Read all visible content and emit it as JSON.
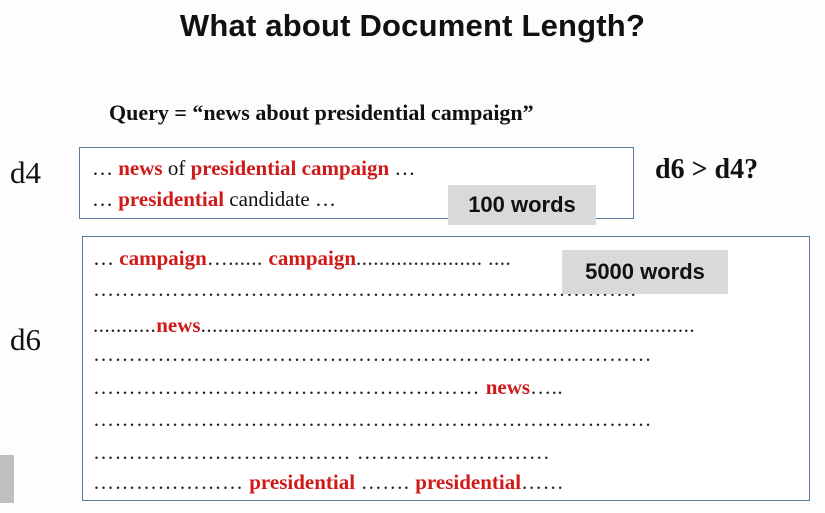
{
  "slide": {
    "title": "What about Document Length?",
    "query": "Query = “news about presidential campaign”",
    "comparison": "d6 > d4?"
  },
  "d4": {
    "label": "d4",
    "badge": "100 words",
    "line1": [
      {
        "t": "… ",
        "s": "n"
      },
      {
        "t": "news",
        "s": "r"
      },
      {
        "t": " of ",
        "s": "n"
      },
      {
        "t": "presidential campaign",
        "s": "r"
      },
      {
        "t": " …",
        "s": "n"
      }
    ],
    "line2": [
      {
        "t": "… ",
        "s": "n"
      },
      {
        "t": "presidential",
        "s": "r"
      },
      {
        "t": " candidate …",
        "s": "n"
      }
    ]
  },
  "d6": {
    "label": "d6",
    "badge": "5000 words",
    "lines": [
      [
        {
          "t": "… ",
          "s": "n"
        },
        {
          "t": "campaign",
          "s": "r"
        },
        {
          "t": "…...... ",
          "s": "d"
        },
        {
          "t": "campaign",
          "s": "r"
        },
        {
          "t": "...................... ",
          "s": "d"
        },
        {
          "t": "....",
          "s": "d"
        }
      ],
      [
        {
          "t": "………………………………………………………………….",
          "s": "d"
        }
      ],
      [
        {
          "t": "...........",
          "s": "d"
        },
        {
          "t": "news",
          "s": "r"
        },
        {
          "t": "......................................................................................",
          "s": "d"
        }
      ],
      [
        {
          "t": "……………………………………………………………………",
          "s": "d"
        }
      ],
      [
        {
          "t": "……………………………………………… ",
          "s": "d"
        },
        {
          "t": "news",
          "s": "r"
        },
        {
          "t": "…..",
          "s": "d"
        }
      ],
      [
        {
          "t": "……………………………………………………………………",
          "s": "d"
        }
      ],
      [
        {
          "t": "……………………………… ………………………",
          "s": "d"
        }
      ],
      [
        {
          "t": "………………… ",
          "s": "d"
        },
        {
          "t": "presidential",
          "s": "r"
        },
        {
          "t": " ……. ",
          "s": "d"
        },
        {
          "t": "presidential",
          "s": "r"
        },
        {
          "t": "……",
          "s": "d"
        }
      ]
    ]
  }
}
